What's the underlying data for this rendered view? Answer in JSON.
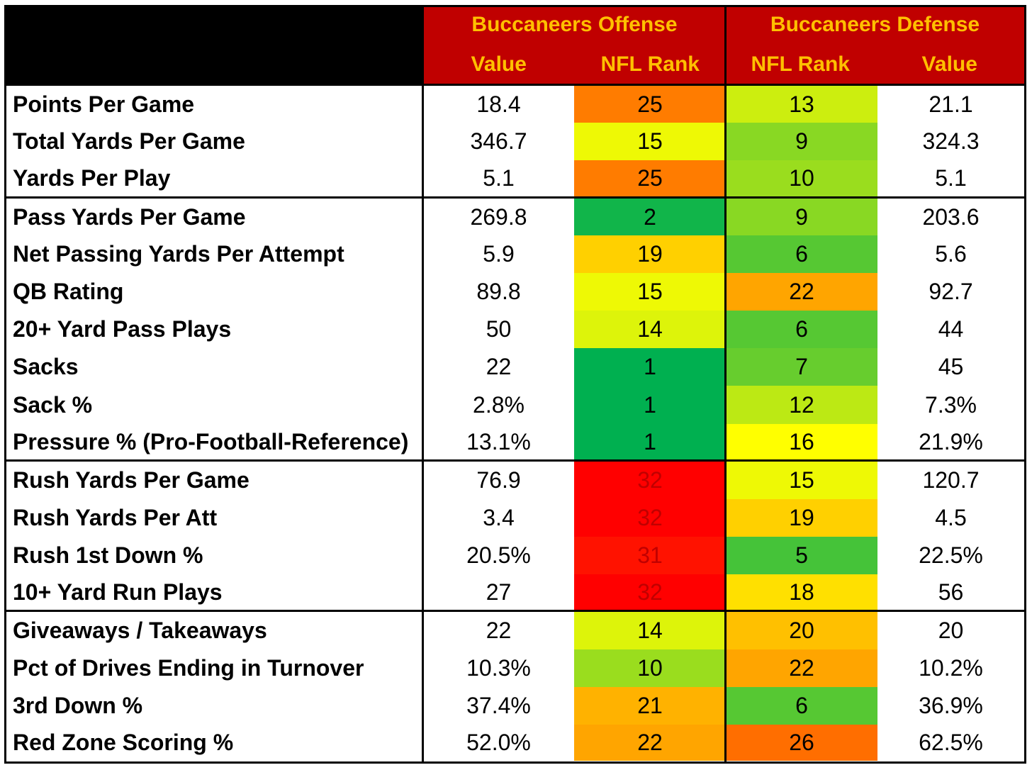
{
  "header": {
    "offense_title": "Buccaneers Offense",
    "defense_title": "Buccaneers Defense",
    "offense_col1": "Value",
    "offense_col2": "NFL Rank",
    "defense_col1": "NFL Rank",
    "defense_col2": "Value"
  },
  "colors": {
    "header_bg": "#c00000",
    "header_text": "#ffc000",
    "rank_text_red_cells": "#c00000"
  },
  "rows": [
    {
      "label": "Points Per Game",
      "off_value": "18.4",
      "off_rank": "25",
      "def_rank": "13",
      "def_value": "21.1"
    },
    {
      "label": "Total Yards Per Game",
      "off_value": "346.7",
      "off_rank": "15",
      "def_rank": "9",
      "def_value": "324.3"
    },
    {
      "label": "Yards Per Play",
      "off_value": "5.1",
      "off_rank": "25",
      "def_rank": "10",
      "def_value": "5.1"
    },
    {
      "label": "Pass Yards Per Game",
      "off_value": "269.8",
      "off_rank": "2",
      "def_rank": "9",
      "def_value": "203.6"
    },
    {
      "label": "Net Passing Yards Per Attempt",
      "off_value": "5.9",
      "off_rank": "19",
      "def_rank": "6",
      "def_value": "5.6"
    },
    {
      "label": "QB Rating",
      "off_value": "89.8",
      "off_rank": "15",
      "def_rank": "22",
      "def_value": "92.7"
    },
    {
      "label": "20+ Yard Pass Plays",
      "off_value": "50",
      "off_rank": "14",
      "def_rank": "6",
      "def_value": "44"
    },
    {
      "label": "Sacks",
      "off_value": "22",
      "off_rank": "1",
      "def_rank": "7",
      "def_value": "45"
    },
    {
      "label": "Sack %",
      "off_value": "2.8%",
      "off_rank": "1",
      "def_rank": "12",
      "def_value": "7.3%"
    },
    {
      "label": "Pressure % (Pro-Football-Reference)",
      "off_value": "13.1%",
      "off_rank": "1",
      "def_rank": "16",
      "def_value": "21.9%"
    },
    {
      "label": "Rush Yards Per Game",
      "off_value": "76.9",
      "off_rank": "32",
      "def_rank": "15",
      "def_value": "120.7"
    },
    {
      "label": "Rush Yards Per Att",
      "off_value": "3.4",
      "off_rank": "32",
      "def_rank": "19",
      "def_value": "4.5"
    },
    {
      "label": "Rush 1st Down %",
      "off_value": "20.5%",
      "off_rank": "31",
      "def_rank": "5",
      "def_value": "22.5%"
    },
    {
      "label": "10+ Yard Run Plays",
      "off_value": "27",
      "off_rank": "32",
      "def_rank": "18",
      "def_value": "56"
    },
    {
      "label": "Giveaways / Takeaways",
      "off_value": "22",
      "off_rank": "14",
      "def_rank": "20",
      "def_value": "20"
    },
    {
      "label": "Pct of Drives Ending in Turnover",
      "off_value": "10.3%",
      "off_rank": "10",
      "def_rank": "22",
      "def_value": "10.2%"
    },
    {
      "label": "3rd Down %",
      "off_value": "37.4%",
      "off_rank": "21",
      "def_rank": "6",
      "def_value": "36.9%"
    },
    {
      "label": "Red Zone Scoring %",
      "off_value": "52.0%",
      "off_rank": "22",
      "def_rank": "26",
      "def_value": "62.5%"
    }
  ]
}
